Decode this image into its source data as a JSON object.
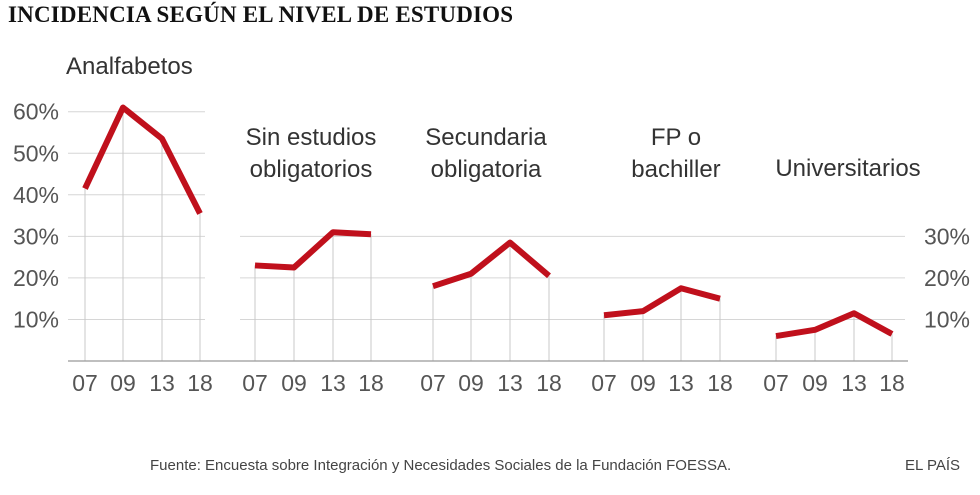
{
  "title": "INCIDENCIA SEGÚN EL NIVEL DE ESTUDIOS",
  "source": "Fuente: Encuesta sobre Integración y Necesidades Sociales de la Fundación FOESSA.",
  "brand": "EL PAÍS",
  "colors": {
    "line": "#c0101c",
    "grid": "#d6d6d6",
    "text": "#555555"
  },
  "chart_data": {
    "type": "line",
    "x": [
      "07",
      "09",
      "13",
      "18"
    ],
    "ylim": [
      0,
      65
    ],
    "yticks_left": [
      "10%",
      "20%",
      "30%",
      "40%",
      "50%",
      "60%"
    ],
    "yticks_right": [
      "10%",
      "20%",
      "30%"
    ],
    "grid": true,
    "panels": [
      {
        "label": [
          "Analfabetos"
        ],
        "values": [
          41.5,
          61,
          53.5,
          35.5
        ]
      },
      {
        "label": [
          "Sin estudios",
          "obligatorios"
        ],
        "values": [
          23,
          22.5,
          31,
          30.5
        ]
      },
      {
        "label": [
          "Secundaria",
          "obligatoria"
        ],
        "values": [
          18,
          21,
          28.5,
          20.5
        ]
      },
      {
        "label": [
          "FP o",
          "bachiller"
        ],
        "values": [
          11,
          12,
          17.5,
          15
        ]
      },
      {
        "label": [
          "Universitarios"
        ],
        "values": [
          6,
          7.5,
          11.5,
          6.5
        ]
      }
    ]
  }
}
